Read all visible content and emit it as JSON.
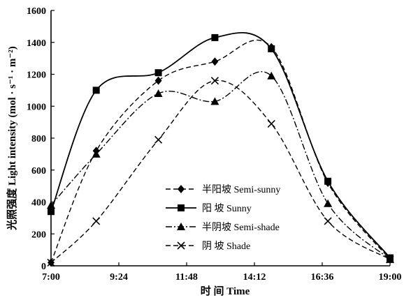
{
  "chart_data": {
    "type": "line",
    "title": "",
    "xlabel": "时 间 Time",
    "ylabel": "光照强度 Light intensity (mol · s⁻¹ · m⁻²)",
    "x_ticks": [
      "7:00",
      "9:24",
      "11:48",
      "14:12",
      "16:36",
      "19:00"
    ],
    "xlim": [
      "7:00",
      "19:00"
    ],
    "ylim": [
      0,
      1600
    ],
    "y_ticks": [
      0,
      200,
      400,
      600,
      800,
      1000,
      1200,
      1400,
      1600
    ],
    "grid": false,
    "legend_position": "lower-left",
    "series": [
      {
        "name": "半阳坡 Semi-sunny",
        "marker": "diamond",
        "line_style": "dashed",
        "x": [
          "7:00",
          "8:36",
          "10:48",
          "12:48",
          "14:48",
          "16:48",
          "19:00"
        ],
        "values": [
          20,
          720,
          1160,
          1280,
          1370,
          520,
          40
        ]
      },
      {
        "name": "阳 坡 Sunny",
        "marker": "square",
        "line_style": "solid",
        "x": [
          "7:00",
          "8:36",
          "10:48",
          "12:48",
          "14:48",
          "16:48",
          "19:00"
        ],
        "values": [
          340,
          1100,
          1210,
          1430,
          1360,
          530,
          50
        ]
      },
      {
        "name": "半阴坡 Semi-shade",
        "marker": "triangle",
        "line_style": "dashdot",
        "x": [
          "7:00",
          "8:36",
          "10:48",
          "12:48",
          "14:48",
          "16:48",
          "19:00"
        ],
        "values": [
          380,
          700,
          1080,
          1030,
          1190,
          390,
          40
        ]
      },
      {
        "name": "阴 坡 Shade",
        "marker": "x",
        "line_style": "dashed",
        "x": [
          "7:00",
          "8:36",
          "10:48",
          "12:48",
          "14:48",
          "16:48",
          "19:00"
        ],
        "values": [
          20,
          280,
          790,
          1160,
          890,
          280,
          40
        ]
      }
    ]
  }
}
